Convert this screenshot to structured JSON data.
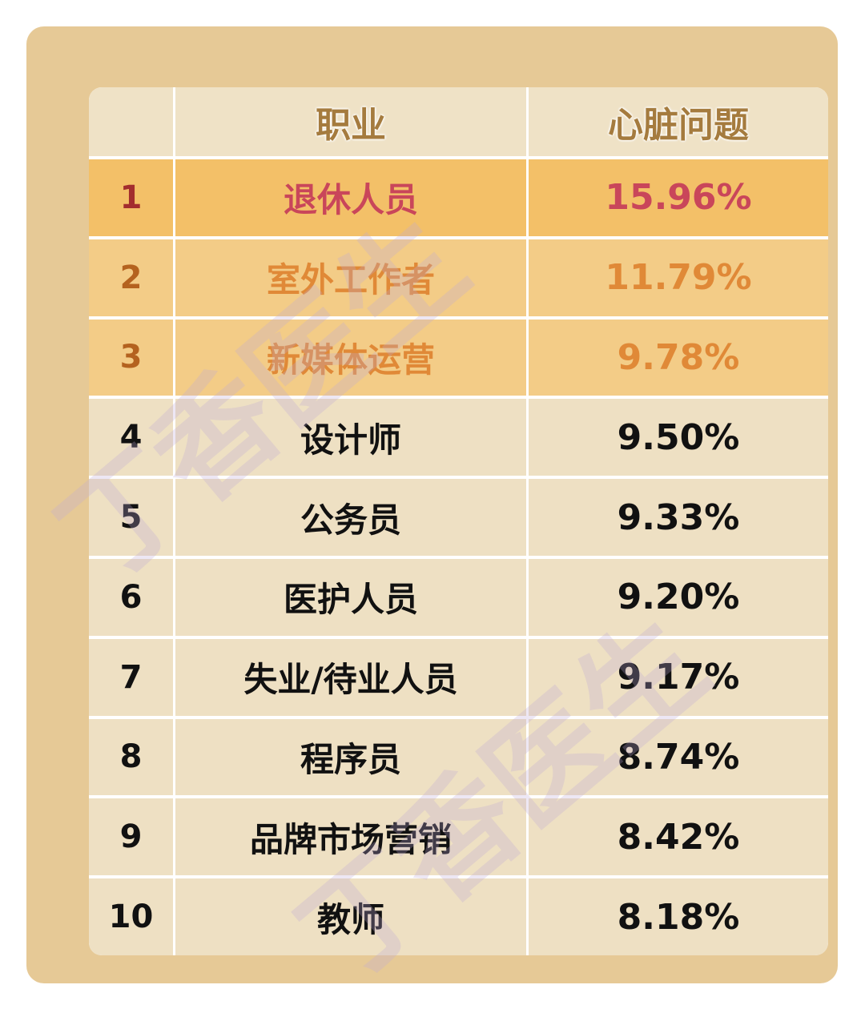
{
  "watermark": "丁香医生",
  "table": {
    "headers": [
      "",
      "职业",
      "心脏问题"
    ],
    "rows": [
      {
        "rank": "1",
        "occupation": "退休人员",
        "value": "15.96%"
      },
      {
        "rank": "2",
        "occupation": "室外工作者",
        "value": "11.79%"
      },
      {
        "rank": "3",
        "occupation": "新媒体运营",
        "value": "9.78%"
      },
      {
        "rank": "4",
        "occupation": "设计师",
        "value": "9.50%"
      },
      {
        "rank": "5",
        "occupation": "公务员",
        "value": "9.33%"
      },
      {
        "rank": "6",
        "occupation": "医护人员",
        "value": "9.20%"
      },
      {
        "rank": "7",
        "occupation": "失业/待业人员",
        "value": "9.17%"
      },
      {
        "rank": "8",
        "occupation": "程序员",
        "value": "8.74%"
      },
      {
        "rank": "9",
        "occupation": "品牌市场营销",
        "value": "8.42%"
      },
      {
        "rank": "10",
        "occupation": "教师",
        "value": "8.18%"
      }
    ]
  },
  "colors": {
    "card": "#e6c996",
    "row_top1": "#f3c068",
    "row_top2_3": "#f3cc87",
    "row_default": "#eee0c3",
    "text_top1": "#c9465a",
    "text_top2_3": "#e08937"
  },
  "chart_data": {
    "type": "table",
    "columns": [
      "",
      "职业",
      "心脏问题"
    ],
    "categories": [
      "退休人员",
      "室外工作者",
      "新媒体运营",
      "设计师",
      "公务员",
      "医护人员",
      "失业/待业人员",
      "程序员",
      "品牌市场营销",
      "教师"
    ],
    "values": [
      15.96,
      11.79,
      9.78,
      9.5,
      9.33,
      9.2,
      9.17,
      8.74,
      8.42,
      8.18
    ]
  }
}
